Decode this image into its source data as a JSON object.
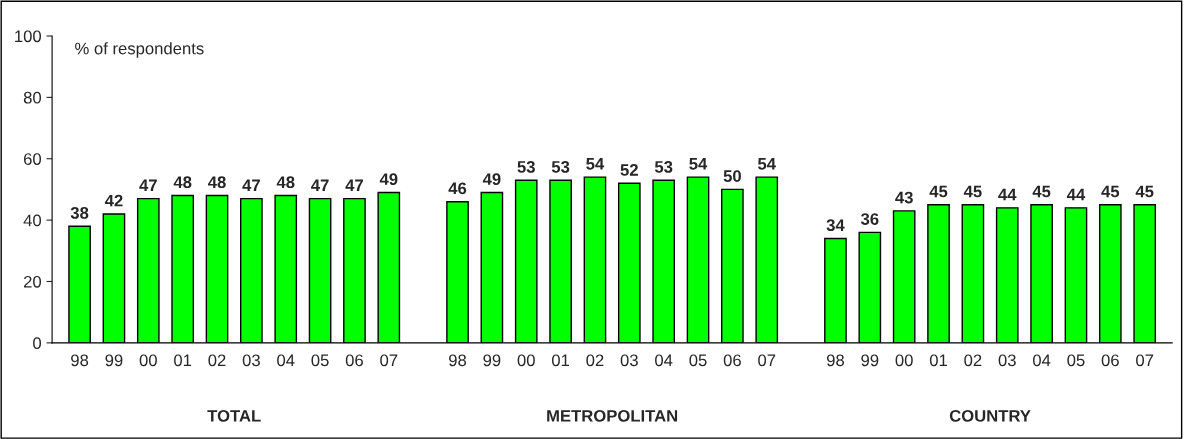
{
  "chart_data": {
    "type": "bar",
    "ylabel": "% of respondents",
    "categories": [
      "98",
      "99",
      "00",
      "01",
      "02",
      "03",
      "04",
      "05",
      "06",
      "07",
      null,
      "98",
      "99",
      "00",
      "01",
      "02",
      "03",
      "04",
      "05",
      "06",
      "07",
      null,
      "98",
      "99",
      "00",
      "01",
      "02",
      "03",
      "04",
      "05",
      "06",
      "07"
    ],
    "series": [
      {
        "color": "#00ff00",
        "values": [
          38,
          42,
          47,
          48,
          48,
          47,
          48,
          47,
          47,
          49,
          null,
          46,
          49,
          53,
          53,
          54,
          52,
          53,
          54,
          50,
          54,
          null,
          34,
          36,
          43,
          45,
          45,
          44,
          45,
          44,
          45,
          45
        ]
      }
    ],
    "ylim": [
      0,
      100
    ],
    "yticks": [
      0,
      20,
      40,
      60,
      80,
      100
    ],
    "data_labels": true,
    "grid": false,
    "legend": false,
    "annotations": [
      "TOTAL",
      "METROPOLITAN",
      "COUNTRY"
    ]
  }
}
